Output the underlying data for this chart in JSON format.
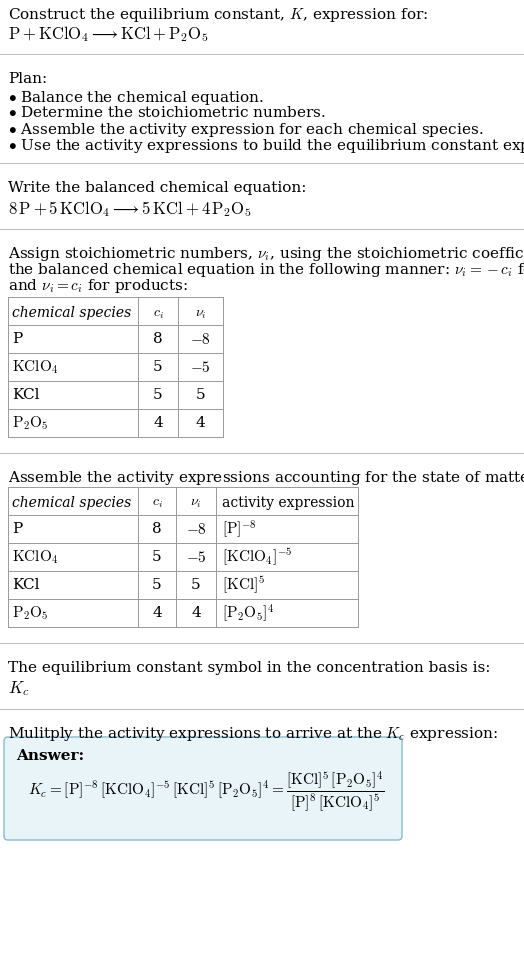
{
  "title_line1": "Construct the equilibrium constant, $K$, expression for:",
  "title_line2_plain": "P + KClO",
  "balanced_header": "Write the balanced chemical equation:",
  "kc_text": "The equilibrium constant symbol in the concentration basis is:",
  "kc_symbol": "$K_c$",
  "multiply_text": "Mulitply the activity expressions to arrive at the $K_c$ expression:",
  "answer_label": "Answer:",
  "bg_color": "#ffffff",
  "text_color": "#000000",
  "table_line_color": "#999999",
  "sep_line_color": "#bbbbbb",
  "answer_box_color": "#e8f4f8",
  "answer_box_border": "#88bbcc",
  "font_size": 11,
  "fig_width": 5.24,
  "fig_height": 9.57,
  "dpi": 100
}
